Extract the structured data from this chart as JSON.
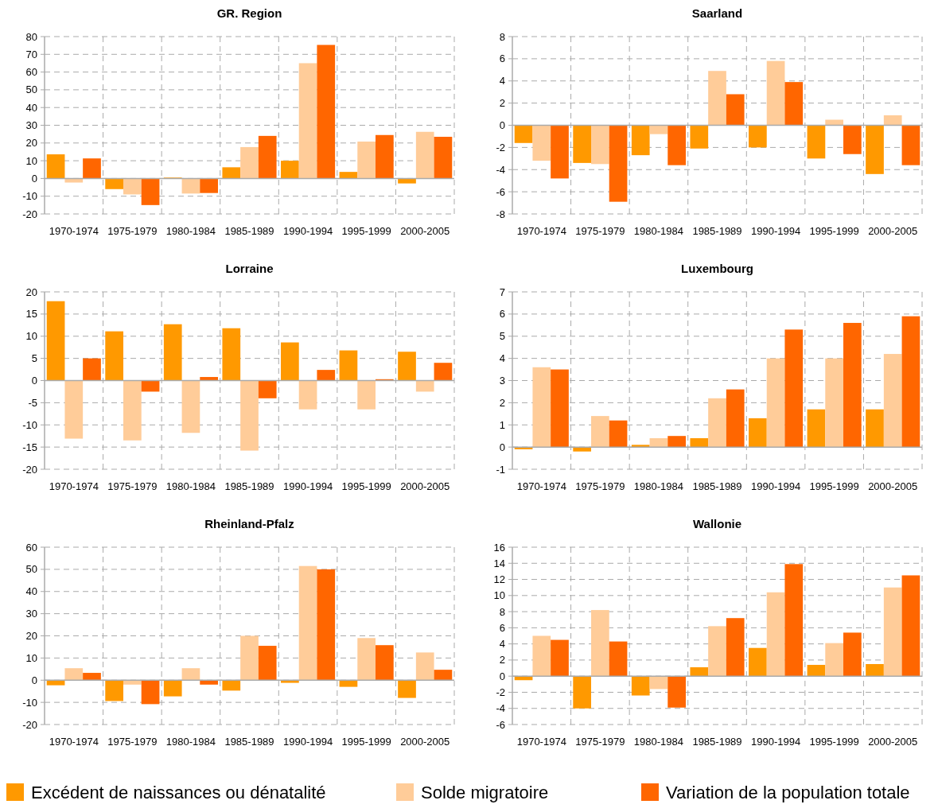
{
  "chart_data": [
    {
      "type": "bar",
      "title": "GR. Region",
      "categories": [
        "1970-1974",
        "1975-1979",
        "1980-1984",
        "1985-1989",
        "1990-1994",
        "1995-1999",
        "2000-2005"
      ],
      "ylim": [
        -20,
        80
      ],
      "yticks": [
        -20,
        -10,
        0,
        10,
        20,
        30,
        40,
        50,
        60,
        70,
        80
      ],
      "grid": true,
      "legend": "bottom",
      "series": [
        {
          "name": "Excédent de naissances ou dénatalité",
          "color": "#ff9900",
          "values": [
            13.6,
            -6,
            0.5,
            6.3,
            10,
            3.7,
            -2.8
          ]
        },
        {
          "name": "Solde migratoire",
          "color": "#ffcc99",
          "values": [
            -2.3,
            -9,
            -8.5,
            17.7,
            65,
            20.8,
            26.3
          ]
        },
        {
          "name": "Variation de la population totale",
          "color": "#ff6600",
          "values": [
            11.3,
            -15,
            -8.2,
            24,
            75.3,
            24.5,
            23.5
          ]
        }
      ]
    },
    {
      "type": "bar",
      "title": "Saarland",
      "categories": [
        "1970-1974",
        "1975-1979",
        "1980-1984",
        "1985-1989",
        "1990-1994",
        "1995-1999",
        "2000-2005"
      ],
      "ylim": [
        -8,
        8
      ],
      "yticks": [
        -8,
        -6,
        -4,
        -2,
        0,
        2,
        4,
        6,
        8
      ],
      "grid": true,
      "series": [
        {
          "color": "#ff9900",
          "values": [
            -1.6,
            -3.4,
            -2.7,
            -2.1,
            -2,
            -3,
            -4.4
          ]
        },
        {
          "color": "#ffcc99",
          "values": [
            -3.2,
            -3.5,
            -0.8,
            4.9,
            5.8,
            0.5,
            0.9
          ]
        },
        {
          "color": "#ff6600",
          "values": [
            -4.8,
            -6.9,
            -3.6,
            2.8,
            3.9,
            -2.6,
            -3.6
          ]
        }
      ]
    },
    {
      "type": "bar",
      "title": "Lorraine",
      "categories": [
        "1970-1974",
        "1975-1979",
        "1980-1984",
        "1985-1989",
        "1990-1994",
        "1995-1999",
        "2000-2005"
      ],
      "ylim": [
        -20,
        20
      ],
      "yticks": [
        -20,
        -15,
        -10,
        -5,
        0,
        5,
        10,
        15,
        20
      ],
      "grid": true,
      "series": [
        {
          "color": "#ff9900",
          "values": [
            17.9,
            11.1,
            12.7,
            11.8,
            8.6,
            6.8,
            6.5
          ]
        },
        {
          "color": "#ffcc99",
          "values": [
            -13.1,
            -13.5,
            -11.8,
            -15.8,
            -6.5,
            -6.5,
            -2.5
          ]
        },
        {
          "color": "#ff6600",
          "values": [
            5,
            -2.5,
            0.8,
            -4,
            2.4,
            0.3,
            4
          ]
        }
      ]
    },
    {
      "type": "bar",
      "title": "Luxembourg",
      "categories": [
        "1970-1974",
        "1975-1979",
        "1980-1984",
        "1985-1989",
        "1990-1994",
        "1995-1999",
        "2000-2005"
      ],
      "ylim": [
        -1,
        7
      ],
      "yticks": [
        -1,
        0,
        1,
        2,
        3,
        4,
        5,
        6,
        7
      ],
      "grid": true,
      "series": [
        {
          "color": "#ff9900",
          "values": [
            -0.1,
            -0.2,
            0.1,
            0.4,
            1.3,
            1.7,
            1.7
          ]
        },
        {
          "color": "#ffcc99",
          "values": [
            3.6,
            1.4,
            0.4,
            2.2,
            4,
            4,
            4.2
          ]
        },
        {
          "color": "#ff6600",
          "values": [
            3.5,
            1.2,
            0.5,
            2.6,
            5.3,
            5.6,
            5.9
          ]
        }
      ]
    },
    {
      "type": "bar",
      "title": "Rheinland-Pfalz",
      "categories": [
        "1970-1974",
        "1975-1979",
        "1980-1984",
        "1985-1989",
        "1990-1994",
        "1995-1999",
        "2000-2005"
      ],
      "ylim": [
        -20,
        60
      ],
      "yticks": [
        -20,
        -10,
        0,
        10,
        20,
        30,
        40,
        50,
        60
      ],
      "grid": true,
      "series": [
        {
          "color": "#ff9900",
          "values": [
            -2.3,
            -9.4,
            -7.3,
            -4.7,
            -1.2,
            -3,
            -8
          ]
        },
        {
          "color": "#ffcc99",
          "values": [
            5.4,
            -2,
            5.4,
            20,
            51.5,
            19,
            12.5
          ]
        },
        {
          "color": "#ff6600",
          "values": [
            3.3,
            -10.8,
            -2,
            15.5,
            50,
            15.8,
            4.7
          ]
        }
      ]
    },
    {
      "type": "bar",
      "title": "Wallonie",
      "categories": [
        "1970-1974",
        "1975-1979",
        "1980-1984",
        "1985-1989",
        "1990-1994",
        "1995-1999",
        "2000-2005"
      ],
      "ylim": [
        -6,
        16
      ],
      "yticks": [
        -6,
        -4,
        -2,
        0,
        2,
        4,
        6,
        8,
        10,
        12,
        14,
        16
      ],
      "grid": true,
      "series": [
        {
          "color": "#ff9900",
          "values": [
            -0.5,
            -4,
            -2.4,
            1.1,
            3.5,
            1.4,
            1.5
          ]
        },
        {
          "color": "#ffcc99",
          "values": [
            5,
            8.2,
            -1.6,
            6.2,
            10.4,
            4.1,
            11
          ]
        },
        {
          "color": "#ff6600",
          "values": [
            4.5,
            4.3,
            -3.9,
            7.2,
            13.9,
            5.4,
            12.5
          ]
        }
      ]
    }
  ]
}
